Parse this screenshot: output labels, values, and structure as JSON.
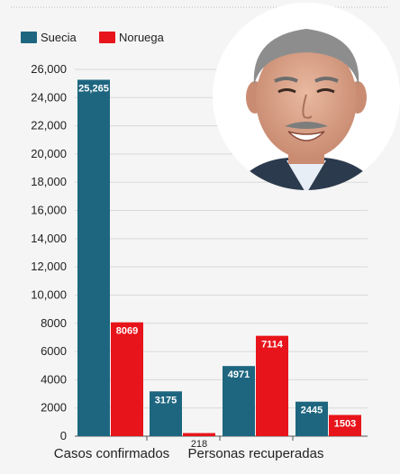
{
  "chart_data": {
    "type": "bar",
    "title": "",
    "xlabel": "",
    "ylabel": "",
    "ylim": [
      0,
      26000
    ],
    "y_ticks": [
      0,
      2000,
      4000,
      6000,
      8000,
      10000,
      12000,
      14000,
      16000,
      18000,
      20000,
      22000,
      24000,
      26000
    ],
    "y_tick_labels": [
      "0",
      "2000",
      "4000",
      "6000",
      "8000",
      "10,000",
      "12,000",
      "14,000",
      "16,000",
      "18,000",
      "20,000",
      "22,000",
      "24,000",
      "26,000"
    ],
    "grid": true,
    "legend_position": "top-left",
    "categories": [
      "Casos confirmados",
      "",
      "Personas recuperadas",
      ""
    ],
    "series": [
      {
        "name": "Suecia",
        "color": "#1e6680",
        "values": [
          25265,
          3175,
          4971,
          2445
        ],
        "labels": [
          "25,265",
          "3175",
          "4971",
          "2445"
        ]
      },
      {
        "name": "Noruega",
        "color": "#e8141b",
        "values": [
          8069,
          218,
          7114,
          1503
        ],
        "labels": [
          "8069",
          "218",
          "7114",
          "1503"
        ]
      }
    ]
  },
  "portrait": {
    "description_icon": "person-portrait"
  }
}
